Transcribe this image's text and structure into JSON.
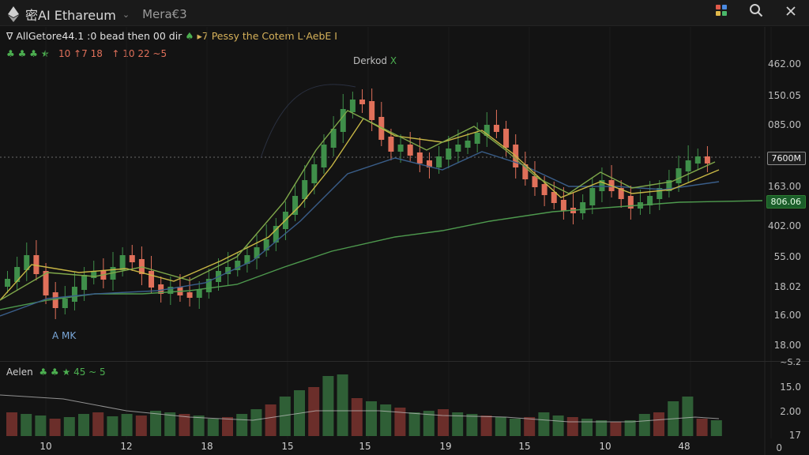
{
  "topbar": {
    "title": "密AI Ethareum",
    "subtitle": "Mera€3",
    "icons": [
      "ethereum-icon",
      "chevron-down-icon",
      "colorful-apps-icon",
      "search-icon",
      "close-icon"
    ]
  },
  "indicator_row1": {
    "prefix": "∇",
    "text": "AllGetore44.1 :0 bead then 00 dir",
    "marker": "♠",
    "warn": "▸7 Pessy the Cotem L·AebE I"
  },
  "indicator_row2": {
    "green": "♣ ♣ ♣ ★",
    "v1": "10",
    "v2": "↑7",
    "v3": "18",
    "v4": "↑",
    "v5": "10",
    "v6": "22",
    "v7": "~5"
  },
  "overlay": {
    "label": "Derkod",
    "x": "X"
  },
  "series_label": "A MK",
  "price_axis": [
    "462.00",
    "150.05",
    "085.00",
    "163.00",
    "402.00",
    "55.00",
    "18.02",
    "16.00",
    "18.00"
  ],
  "price_tags": {
    "current": "7600M",
    "green": "806.06"
  },
  "volume": {
    "label": "Aelen",
    "icons": "♣ ♣ ★",
    "values": "45 ~ 5",
    "axis": [
      "~S.2",
      "15.0",
      "2.00",
      "17",
      "0"
    ]
  },
  "x_axis": [
    "10",
    "12",
    "18",
    "15",
    "15",
    "19",
    "15",
    "10",
    "48"
  ],
  "colors": {
    "up": "#3f8f4a",
    "down": "#e0705a",
    "ma_yellow": "#c9b845",
    "ma_green": "#4e9a4e",
    "ma_blue": "#3a5e8a"
  }
}
